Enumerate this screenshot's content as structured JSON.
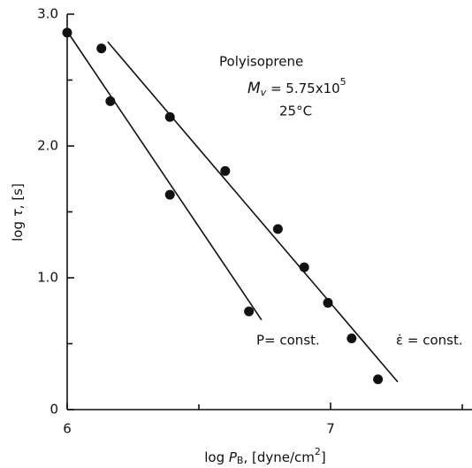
{
  "chart_data": {
    "type": "scatter",
    "xlim": [
      6,
      7.5
    ],
    "ylim": [
      0,
      3
    ],
    "xticks": [
      6,
      7
    ],
    "xminor_ticks": [
      6.5,
      7.5
    ],
    "yticks": [
      0,
      {
        "value": 1,
        "label": "1.0"
      },
      {
        "value": 2,
        "label": "2.0"
      },
      {
        "value": 3,
        "label": "3.0"
      }
    ],
    "yminor_ticks": [
      0.5,
      1.5,
      2.5
    ],
    "x_label": {
      "prefix": "log ",
      "var": "P",
      "sub": "B",
      "unit": ", [dyne/cm",
      "sup": "2",
      "end": "]"
    },
    "y_label": {
      "prefix": "log ",
      "var": "τ",
      "unit": ", [s]"
    },
    "color": "#111111",
    "annotations": {
      "material": "Polyisoprene",
      "mw": {
        "var": "M",
        "sub": "v",
        "text": " = 5.75x10",
        "sup": "5"
      },
      "temperature": "25°C"
    },
    "series": [
      {
        "name": "P= const.",
        "x": [
          6.0,
          6.164,
          6.39,
          6.69
        ],
        "values": [
          2.86,
          2.34,
          1.63,
          0.745
        ],
        "fit": {
          "x": [
            6.0,
            6.738
          ],
          "values": [
            2.87,
            0.68
          ]
        }
      },
      {
        "name": "ε̇ = const.",
        "x": [
          6.13,
          6.39,
          6.6,
          6.8,
          6.9,
          6.99,
          7.08,
          7.18
        ],
        "values": [
          2.74,
          2.22,
          1.81,
          1.37,
          1.08,
          0.81,
          0.54,
          0.23
        ],
        "fit": {
          "x": [
            6.154,
            7.255
          ],
          "values": [
            2.79,
            0.21
          ]
        }
      }
    ]
  }
}
